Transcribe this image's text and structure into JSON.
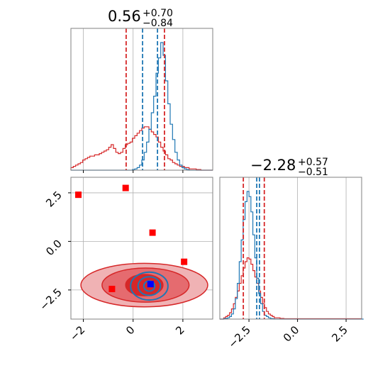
{
  "chart_data": {
    "type": "corner",
    "colors": {
      "blue": "#1f77b4",
      "red": "#d62728",
      "marker_red": "#ff0000",
      "marker_blue": "#0000ff",
      "grid": "#b0b0b0",
      "frame": "#808080"
    },
    "params": [
      {
        "name": "param1",
        "title_value": "0.56",
        "title_plus": "+0.70",
        "title_minus": "−0.84",
        "range": [
          -2.5,
          3.2
        ]
      },
      {
        "name": "param2",
        "title_value": "−2.28",
        "title_plus": "+0.57",
        "title_minus": "−0.51",
        "range": [
          -4.0,
          3.3
        ]
      }
    ],
    "grid": true,
    "ticks": {
      "x_param1": [
        {
          "v": -2,
          "label": "−2"
        },
        {
          "v": 0,
          "label": "0"
        },
        {
          "v": 2,
          "label": "2"
        }
      ],
      "y_param2": [
        {
          "v": 2.5,
          "label": "2.5"
        },
        {
          "v": 0,
          "label": "0.0"
        },
        {
          "v": -2.5,
          "label": "−2.5"
        }
      ],
      "x_param2": [
        {
          "v": -2.5,
          "label": "−2.5"
        },
        {
          "v": 0,
          "label": "0.0"
        },
        {
          "v": 2.5,
          "label": "2.5"
        }
      ]
    },
    "hist_param1": {
      "bin_start": -2.5,
      "bin_width": 0.095,
      "blue": [
        0,
        0,
        0,
        0,
        0,
        0,
        0,
        0,
        0,
        0,
        0,
        0,
        0,
        0,
        0,
        0,
        0,
        0,
        0,
        0,
        0,
        0,
        0,
        0,
        0,
        0,
        0.5,
        1,
        2,
        4,
        8,
        14,
        22,
        32,
        45,
        58,
        76,
        88,
        100,
        90,
        70,
        52,
        36,
        24,
        14,
        8,
        4,
        2,
        1,
        0.5,
        0,
        0,
        0,
        0,
        0,
        0,
        0,
        0,
        0,
        0
      ],
      "red": [
        2,
        3,
        4,
        5,
        6,
        8,
        9,
        10,
        11,
        11,
        12,
        12,
        13,
        14,
        15,
        16,
        18,
        20,
        17,
        14,
        13,
        14,
        17,
        20,
        21,
        22,
        25,
        27,
        29,
        31,
        33,
        34,
        34,
        32,
        30,
        28,
        26,
        22,
        18,
        15,
        12,
        9,
        8,
        6,
        5,
        4,
        3,
        3,
        2,
        2,
        1,
        1,
        1,
        0.5,
        0.5,
        0,
        0,
        0,
        0,
        0
      ]
    },
    "hist_param2": {
      "bin_start": -4.0,
      "bin_width": 0.1,
      "blue": [
        0,
        0,
        0.3,
        0.6,
        1,
        2,
        4,
        8,
        16,
        28,
        45,
        62,
        78,
        92,
        100,
        96,
        84,
        66,
        48,
        32,
        20,
        12,
        6,
        3,
        2,
        1,
        0.5,
        0.3,
        0,
        0,
        0,
        0,
        0,
        0,
        0,
        0,
        0,
        0,
        0,
        0,
        0,
        0,
        0,
        0,
        0,
        0,
        0,
        0,
        0,
        0,
        0,
        0,
        0,
        0,
        0,
        0,
        0,
        0,
        0,
        0,
        0,
        0,
        0,
        0,
        0,
        0,
        0,
        0,
        0,
        0,
        0,
        0,
        0,
        0
      ],
      "red": [
        0,
        0,
        1,
        2,
        3,
        5,
        8,
        12,
        17,
        22,
        28,
        34,
        40,
        45,
        48,
        47,
        43,
        38,
        33,
        28,
        22,
        17,
        12,
        9,
        6,
        4,
        3,
        2,
        1,
        1,
        1,
        0.5,
        0.5,
        0.3,
        0.3,
        0.3,
        0.3,
        0.3,
        0.3,
        0.3,
        0.3,
        0.3,
        0.3,
        0.3,
        0.3,
        0.3,
        0.3,
        0.3,
        0.3,
        0.3,
        0.3,
        0.3,
        0.3,
        0.3,
        0.3,
        0.3,
        0.3,
        0.3,
        0.3,
        0.3,
        0.3,
        0.3,
        0.3,
        0.3,
        0.3,
        0.3,
        0.3,
        0.3,
        0.3,
        0.3,
        0.3,
        0.3,
        0.3
      ]
    },
    "quantiles_param1": {
      "red": [
        -0.28,
        1.26
      ],
      "blue": [
        0.38,
        0.98
      ]
    },
    "quantiles_param2": {
      "red": [
        -2.79,
        -1.71
      ],
      "blue": [
        -2.1,
        -1.96
      ]
    },
    "scatter_markers_red": [
      {
        "x": -2.2,
        "y": 2.4
      },
      {
        "x": -0.3,
        "y": 2.75
      },
      {
        "x": 0.78,
        "y": 0.45
      },
      {
        "x": 2.05,
        "y": -1.05
      },
      {
        "x": -0.85,
        "y": -2.45
      }
    ],
    "scatter_marker_blue": {
      "x": 0.7,
      "y": -2.2
    },
    "contours_red": [
      {
        "cx": 0.45,
        "cy": -2.25,
        "rx": 2.55,
        "ry": 1.12,
        "level": "outer"
      },
      {
        "cx": 0.5,
        "cy": -2.25,
        "rx": 1.75,
        "ry": 0.88,
        "level": "mid"
      },
      {
        "cx": 0.45,
        "cy": -2.25,
        "rx": 0.75,
        "ry": 0.55,
        "level": "inner"
      }
    ],
    "contours_blue": [
      {
        "cx": 0.65,
        "cy": -2.3,
        "rx": 0.75,
        "ry": 0.72,
        "level": "outer"
      },
      {
        "cx": 0.65,
        "cy": -2.3,
        "rx": 0.45,
        "ry": 0.48,
        "level": "mid"
      },
      {
        "cx": 0.65,
        "cy": -2.3,
        "rx": 0.22,
        "ry": 0.26,
        "level": "inner"
      }
    ]
  }
}
